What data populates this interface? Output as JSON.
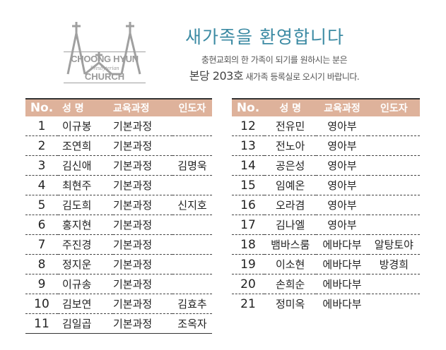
{
  "logo": {
    "line1": "CHOONG HYUN",
    "line2": "Presbyterian",
    "line3": "CHURCH",
    "color": "#9a9a9a"
  },
  "header": {
    "title": "새가족을 환영합니다",
    "line1": "충현교회의 한 가족이 되기를 원하시는 분은",
    "line2_big": "본당 203호",
    "line2_rest": " 새가족 등록실로 오시기 바랍니다.",
    "title_color": "#3b8aa3"
  },
  "columns": [
    "No.",
    "성 명",
    "교육과정",
    "인도자"
  ],
  "header_color": "#deb29b",
  "left_rows": [
    [
      "1",
      "이규봉",
      "기본과정",
      ""
    ],
    [
      "2",
      "조연희",
      "기본과정",
      ""
    ],
    [
      "3",
      "김신애",
      "기본과정",
      "김명욱"
    ],
    [
      "4",
      "최현주",
      "기본과정",
      ""
    ],
    [
      "5",
      "김도희",
      "기본과정",
      "신지호"
    ],
    [
      "6",
      "홍지현",
      "기본과정",
      ""
    ],
    [
      "7",
      "주진경",
      "기본과정",
      ""
    ],
    [
      "8",
      "정지운",
      "기본과정",
      ""
    ],
    [
      "9",
      "이규송",
      "기본과정",
      ""
    ],
    [
      "10",
      "김보연",
      "기본과정",
      "김효추"
    ],
    [
      "11",
      "김일곱",
      "기본과정",
      "조옥자"
    ]
  ],
  "right_rows": [
    [
      "12",
      "전유민",
      "영아부",
      ""
    ],
    [
      "13",
      "전노아",
      "영아부",
      ""
    ],
    [
      "14",
      "공은성",
      "영아부",
      ""
    ],
    [
      "15",
      "임예온",
      "영아부",
      ""
    ],
    [
      "16",
      "오라겸",
      "영아부",
      ""
    ],
    [
      "17",
      "김나엘",
      "영아부",
      ""
    ],
    [
      "18",
      "뱀바스룸",
      "에바다부",
      "알탕토야"
    ],
    [
      "19",
      "이소현",
      "에바다부",
      "방경희"
    ],
    [
      "20",
      "손희순",
      "에바다부",
      ""
    ],
    [
      "21",
      "정미옥",
      "에바다부",
      ""
    ]
  ]
}
